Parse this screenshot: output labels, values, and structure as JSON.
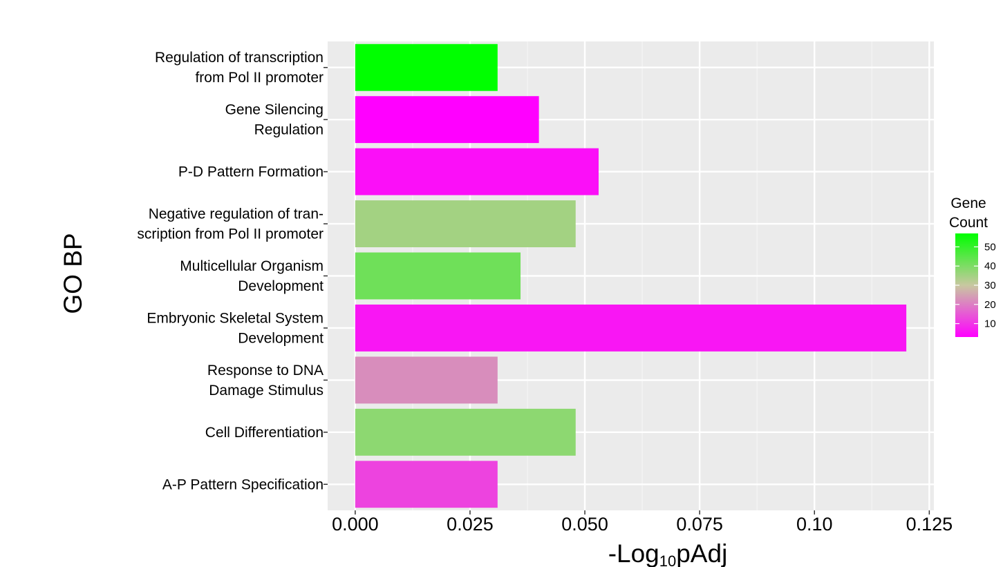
{
  "chart_data": {
    "type": "bar",
    "orientation": "horizontal",
    "ylabel": "GO BP",
    "xlabel": {
      "main": "-Log",
      "sub": "10",
      "tail": "pAdj"
    },
    "xlim": [
      -0.006,
      0.126
    ],
    "xticks": [
      0.0,
      0.025,
      0.05,
      0.075,
      0.1,
      0.125
    ],
    "xtick_labels": [
      "0.000",
      "0.025",
      "0.050",
      "0.075",
      "0.10",
      "0.125"
    ],
    "grid": true,
    "legend_position": "right",
    "categories": [
      [
        "Regulation of transcription",
        "from Pol II promoter"
      ],
      [
        "Gene Silencing",
        "Regulation"
      ],
      [
        "P-D Pattern Formation"
      ],
      [
        "Negative regulation of tran-",
        "scription from Pol II promoter"
      ],
      [
        "Multicellular Organism",
        "Development"
      ],
      [
        "Embryonic Skeletal System",
        "Development"
      ],
      [
        "Response to DNA",
        "Damage Stimulus"
      ],
      [
        "Cell Differentiation"
      ],
      [
        "A-P Pattern Specification"
      ]
    ],
    "values": [
      0.031,
      0.04,
      0.053,
      0.048,
      0.036,
      0.12,
      0.031,
      0.048,
      0.031
    ],
    "gene_counts": [
      57,
      3,
      5,
      35,
      42,
      6,
      22,
      38,
      12
    ],
    "colorbar": {
      "title": [
        "Gene",
        "Count"
      ],
      "ticks": [
        10,
        20,
        30,
        40,
        50
      ],
      "range": [
        3,
        57
      ],
      "low_color": "#ff00ff",
      "mid_color": "#c8c8a0",
      "high_color": "#00ff00"
    },
    "colors": {
      "panel_bg": "#ebebeb",
      "grid_major": "#ffffff",
      "grid_minor": "#f5f5f5"
    }
  }
}
